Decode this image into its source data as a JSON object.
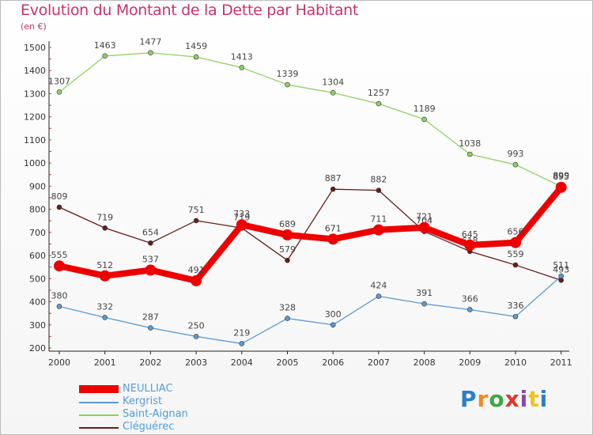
{
  "header": {
    "title": "Evolution du Montant de la Dette par Habitant",
    "subtitle": "(en €)"
  },
  "logo": {
    "text": "Proxiti",
    "colors": [
      "#2c7fc9",
      "#f08a1c",
      "#3aa845",
      "#e0352b",
      "#8e44ad",
      "#f2c318",
      "#2c7fc9"
    ]
  },
  "chart_data": {
    "type": "line",
    "categories": [
      "2000",
      "2001",
      "2002",
      "2003",
      "2004",
      "2005",
      "2006",
      "2007",
      "2008",
      "2009",
      "2010",
      "2011"
    ],
    "ylim": [
      200,
      1500
    ],
    "yticks": [
      200,
      300,
      400,
      500,
      600,
      700,
      800,
      900,
      1000,
      1100,
      1200,
      1300,
      1400,
      1500
    ],
    "grid": false,
    "legend_position": "bottom-left",
    "series": [
      {
        "name": "Saint-Aignan",
        "color": "#8ed160",
        "values": [
          1307,
          1463,
          1477,
          1459,
          1413,
          1339,
          1304,
          1257,
          1189,
          1038,
          993,
          899
        ]
      },
      {
        "name": "Cléguérec",
        "color": "#6b1a1a",
        "values": [
          809,
          719,
          654,
          751,
          719,
          579,
          887,
          882,
          704,
          618,
          559,
          493
        ]
      },
      {
        "name": "Kergrist",
        "color": "#5b9bd5",
        "values": [
          380,
          332,
          287,
          250,
          219,
          328,
          300,
          424,
          391,
          366,
          336,
          511
        ]
      },
      {
        "name": "NEULLIAC",
        "color": "#ee0000",
        "values": [
          555,
          512,
          537,
          491,
          733,
          689,
          671,
          711,
          721,
          645,
          656,
          895
        ]
      }
    ],
    "legend_order": [
      "NEULLIAC",
      "Kergrist",
      "Saint-Aignan",
      "Cléguérec"
    ]
  }
}
